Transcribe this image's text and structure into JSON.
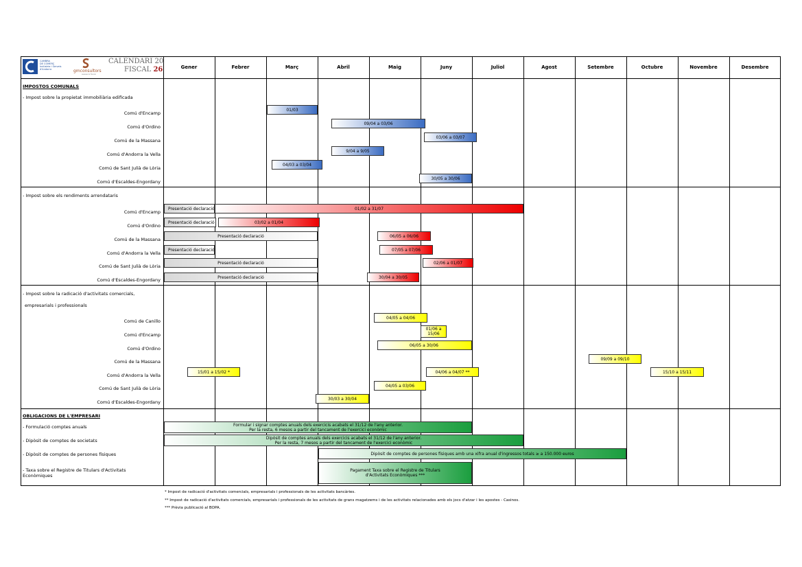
{
  "header": {
    "org_name": [
      "CAMBRA",
      "DE COMERÇ",
      "Indústria i Serveis",
      "d'Andorra"
    ],
    "firm_name": "gmconsultors",
    "firm_tagline": "assessors fiscals",
    "title_line1": "CALENDARI",
    "year_part1": "20",
    "title_line2": "FISCAL",
    "year_part2": "26"
  },
  "months": [
    "Gener",
    "Febrer",
    "Març",
    "Abril",
    "Maig",
    "Juny",
    "Juliol",
    "Agost",
    "Setembre",
    "Octubre",
    "Novembre",
    "Desembre"
  ],
  "sections": {
    "impostos_comunals": "IMPOSTOS COMUNALS",
    "obligacions": "OBLIGACIONS DE L'EMPRESARI"
  },
  "subsections": {
    "immobiliaria": "- Impost sobre la propietat immobiliària edificada",
    "rendiments": "- Impost sobre els rendiments arrendataris",
    "radicacio_1": "- Impost sobre la radicació d'activitats comercials,",
    "radicacio_2": "empresarials i professionals"
  },
  "rows": {
    "immobiliaria": [
      {
        "label": "Comú d'Encamp",
        "bar": "01/03"
      },
      {
        "label": "Comú d'Ordino",
        "bar": "09/04 a 03/06"
      },
      {
        "label": "Comú de la Massana",
        "bar": "03/06 a 03/07"
      },
      {
        "label": "Comú d'Andorra la Vella",
        "bar": "9/04 a 9/05"
      },
      {
        "label": "Comú de Sant Julià de Lòria",
        "bar": "04/03 a 03/04"
      },
      {
        "label": "Comú d'Escaldes-Engordany",
        "bar": "30/05 a 30/06"
      }
    ],
    "rendiments": [
      {
        "label": "Comú d'Encamp",
        "pres": "Presentació declaració",
        "bar": "01/02 a 31/07"
      },
      {
        "label": "Comú d'Ordino",
        "pres": "Presentació declaració",
        "bar": "03/02 a 01/04"
      },
      {
        "label": "Comú de la Massana",
        "pres": "Presentació declaració",
        "bar": "06/05 a 06/06"
      },
      {
        "label": "Comú d'Andorra la Vella",
        "pres": "Presentació declaració",
        "bar": "07/05 a 07/06"
      },
      {
        "label": "Comú de Sant Julià de Lòria",
        "pres": "Presentació declaració",
        "bar": "02/06 a 01/07"
      },
      {
        "label": "Comú d'Escaldes-Engordany",
        "pres": "Presentació declaració",
        "bar": "30/04 a 30/05"
      }
    ],
    "radicacio": [
      {
        "label": "Comú de Canillo",
        "bar": "04/05 a 04/06"
      },
      {
        "label": "Comú d'Encamp",
        "bar_1": "01/06 a",
        "bar_2": "15/06"
      },
      {
        "label": "Comú d'Ordino",
        "bar": "06/05 a 30/06"
      },
      {
        "label": "Comú de la Massana",
        "bar": "09/09 a 09/10"
      },
      {
        "label": "Comú d'Andorra la Vella",
        "bar_a": "15/01 a 15/02 *",
        "bar_b": "04/06 a 04/07 **",
        "bar_c": "15/10 a 15/11"
      },
      {
        "label": "Comú de Sant Julià de Lòria",
        "bar": "04/05 a 03/06"
      },
      {
        "label": "Comú d'Escaldes-Engordany",
        "bar": "30/03 a 30/04"
      }
    ],
    "obligacions": [
      {
        "label": "- Formulació comptes anuals",
        "bar_1": "Formular i signar comptes anuals dels exercicis acabats el 31/12 de l'any anterior.",
        "bar_2": "Per la resta, 6 mesos a partir del tancament de l'exercici econòmic"
      },
      {
        "label": "- Dipòsit de comptes de societats",
        "bar_1": "Dipòsit de comptes anuals dels exercicis acabats el 31/12 de l'any anterior.",
        "bar_2": "Per la resta, 7 mesos a partir del tancament de l'exercici econòmic"
      },
      {
        "label": "- Dipòsit de comptes de persones físiques",
        "bar_1": "Dipòsit de comptes de persones físiques amb una xifra anual d'ingressos totals ≥ a 150.000 euros"
      },
      {
        "label_1": "- Taxa sobre el Registre de Titulars d'Activitats",
        "label_2": "  Econòmiques",
        "bar_1": "Pagament Taxa sobre el Registre de Titulars",
        "bar_2": "d'Activitats Econòmiques ***"
      }
    ]
  },
  "footnotes": [
    "* Impost de radicació d'activitats comercials, empresarials i professionals de les activitats bancàries.",
    "** Impost de radicació d'activitats comercials, empresarials i professionals de les activitats de grans magatzems i de les activitats relacionades amb els jocs d'atzar i les apostes - Casinos.",
    "*** Prèvia publicació al BOPA."
  ],
  "colors": {
    "blue": "#3b6cc2",
    "red": "#ee0000",
    "yellow": "#ffff00",
    "green": "#1a9e3e",
    "grey": "#d9d9d9"
  }
}
